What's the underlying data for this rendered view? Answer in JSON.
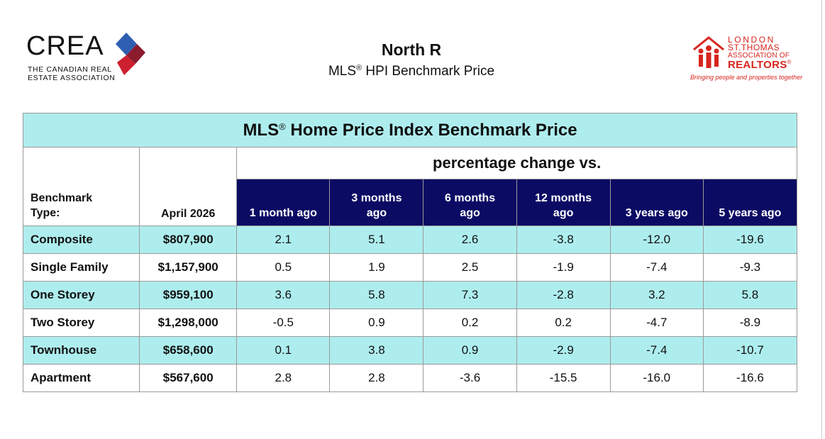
{
  "header": {
    "title": "North R",
    "subtitle_prefix": "MLS",
    "subtitle_reg": "®",
    "subtitle_rest": " HPI Benchmark Price"
  },
  "logos": {
    "crea_word": "CREA",
    "crea_sub_line1": "THE CANADIAN REAL",
    "crea_sub_line2": "ESTATE ASSOCIATION",
    "board_line1": "LONDON",
    "board_line2": "ST.THOMAS",
    "board_line3": "ASSOCIATION OF",
    "board_line4": "REALTORS",
    "board_reg": "®",
    "board_tagline": "Bringing people and properties together"
  },
  "table": {
    "title_prefix": "MLS",
    "title_reg": "®",
    "title_rest": " Home Price Index Benchmark Price",
    "pct_header": "percentage change vs.",
    "benchmark_header_line1": "Benchmark",
    "benchmark_header_line2": "Type:",
    "month_header": "April 2026",
    "periods": [
      {
        "line1": "1 month ago",
        "line2": ""
      },
      {
        "line1": "3 months",
        "line2": "ago"
      },
      {
        "line1": "6 months",
        "line2": "ago"
      },
      {
        "line1": "12 months",
        "line2": "ago"
      },
      {
        "line1": "3 years ago",
        "line2": ""
      },
      {
        "line1": "5 years ago",
        "line2": ""
      }
    ],
    "rows": [
      {
        "type": "Composite",
        "price": "$807,900",
        "changes": [
          "2.1",
          "5.1",
          "2.6",
          "-3.8",
          "-12.0",
          "-19.6"
        ]
      },
      {
        "type": "Single Family",
        "price": "$1,157,900",
        "changes": [
          "0.5",
          "1.9",
          "2.5",
          "-1.9",
          "-7.4",
          "-9.3"
        ]
      },
      {
        "type": "One Storey",
        "price": "$959,100",
        "changes": [
          "3.6",
          "5.8",
          "7.3",
          "-2.8",
          "3.2",
          "5.8"
        ]
      },
      {
        "type": "Two Storey",
        "price": "$1,298,000",
        "changes": [
          "-0.5",
          "0.9",
          "0.2",
          "0.2",
          "-4.7",
          "-8.9"
        ]
      },
      {
        "type": "Townhouse",
        "price": "$658,600",
        "changes": [
          "0.1",
          "3.8",
          "0.9",
          "-2.9",
          "-7.4",
          "-10.7"
        ]
      },
      {
        "type": "Apartment",
        "price": "$567,600",
        "changes": [
          "2.8",
          "2.8",
          "-3.6",
          "-15.5",
          "-16.0",
          "-16.6"
        ]
      }
    ]
  },
  "colors": {
    "header_navy": "#0b0b64",
    "row_shade": "#aeedee",
    "board_red": "#d6251d",
    "crea_blue": "#2f5fb3",
    "crea_red": "#cc1f2f",
    "crea_maroon": "#8b1c2e"
  }
}
